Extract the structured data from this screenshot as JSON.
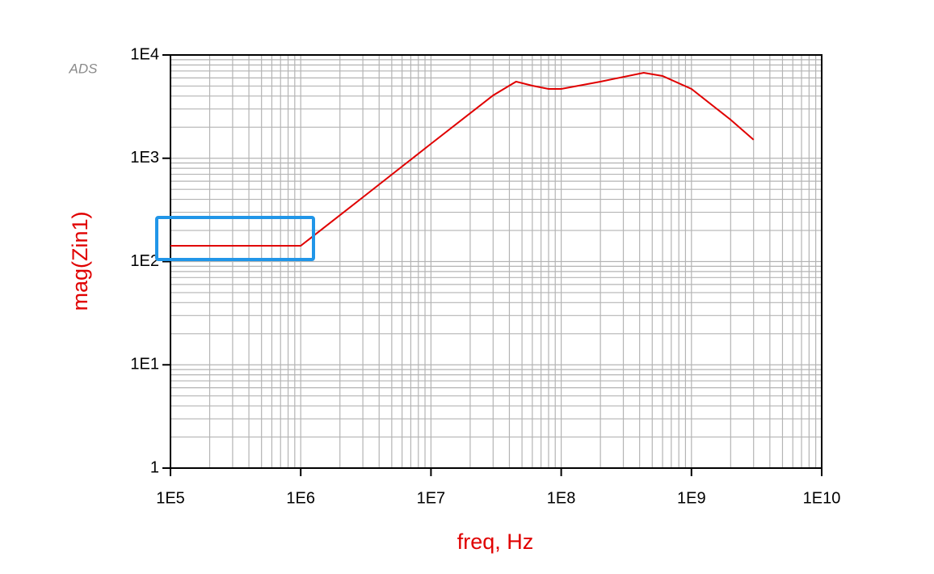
{
  "chart_data": {
    "type": "line",
    "log_x": true,
    "log_y": true,
    "grid": true,
    "minor_grid": true,
    "watermark": "ADS",
    "xlabel": "freq, Hz",
    "ylabel": "mag(Zin1)",
    "xlim": [
      100000,
      10000000000
    ],
    "ylim": [
      1,
      10000
    ],
    "xticks": [
      {
        "value": 100000,
        "label": "1E5"
      },
      {
        "value": 1000000,
        "label": "1E6"
      },
      {
        "value": 10000000,
        "label": "1E7"
      },
      {
        "value": 100000000,
        "label": "1E8"
      },
      {
        "value": 1000000000,
        "label": "1E9"
      },
      {
        "value": 10000000000,
        "label": "1E10"
      }
    ],
    "yticks": [
      1,
      {
        "value": 10,
        "label": "1E1"
      },
      {
        "value": 100,
        "label": "1E2"
      },
      {
        "value": 1000,
        "label": "1E3"
      },
      {
        "value": 10000,
        "label": "1E4"
      }
    ],
    "series": [
      {
        "name": "mag(Zin1)",
        "color": "#e00000",
        "x": [
          100000,
          1000000,
          3000000,
          10000000,
          20000000,
          30000000,
          45000000,
          60000000,
          80000000,
          100000000,
          200000000,
          430000000,
          600000000,
          1000000000,
          2000000000,
          3000000000
        ],
        "values": [
          142,
          142,
          419,
          1380,
          2730,
          4060,
          5520,
          5040,
          4690,
          4690,
          5520,
          6730,
          6260,
          4690,
          2360,
          1510
        ]
      }
    ]
  }
}
